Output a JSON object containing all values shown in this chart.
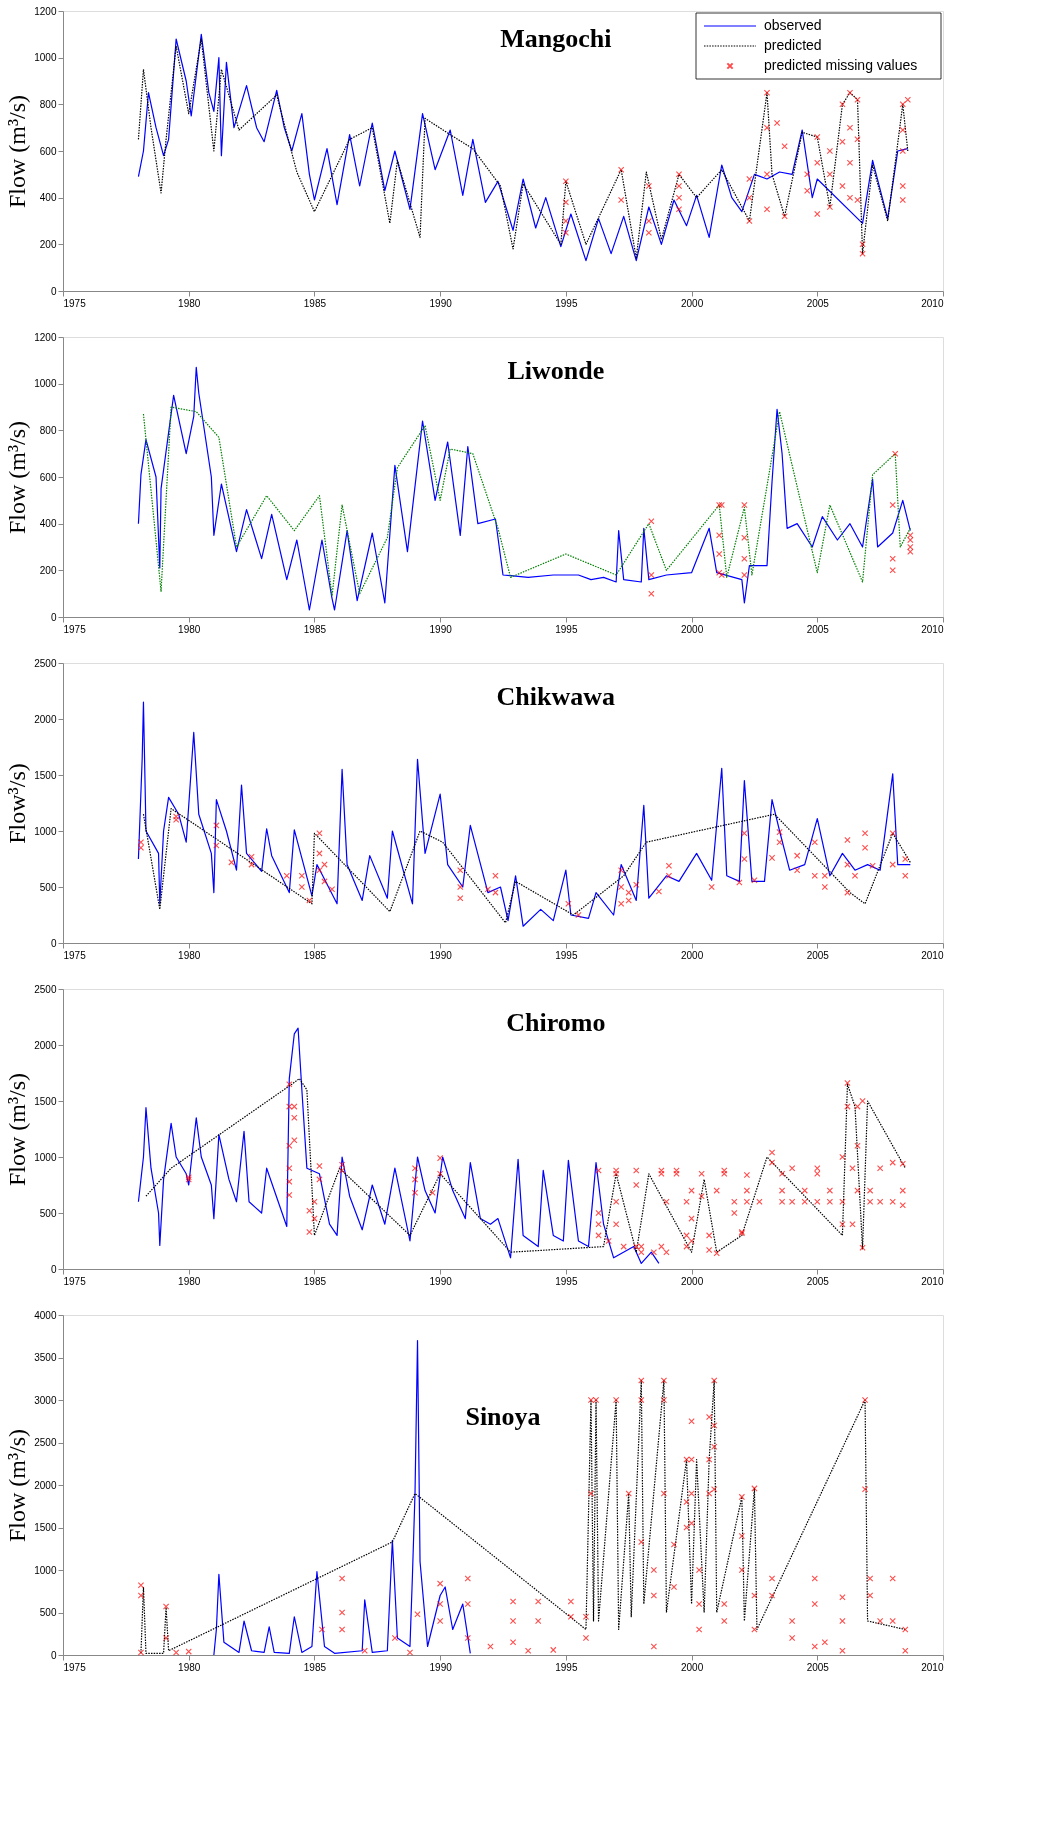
{
  "chart_data": [
    {
      "type": "line",
      "title": "Mangochi",
      "ylabel": "Flow (m³/s)",
      "xlim": [
        1975,
        2010
      ],
      "xticks": [
        1975,
        1980,
        1985,
        1990,
        1995,
        2000,
        2005,
        2010
      ],
      "ylim": [
        0,
        1200
      ],
      "yticks": [
        0,
        200,
        400,
        600,
        800,
        1000,
        1200
      ],
      "legend": "top right",
      "series": [
        {
          "name": "observed",
          "type": "line",
          "color": "#0000ff",
          "line_style": "solid",
          "x": [
            1978.0,
            1978.2,
            1978.4,
            1978.7,
            1979.0,
            1979.2,
            1979.5,
            1979.9,
            1980.1,
            1980.5,
            1980.8,
            1981.0,
            1981.2,
            1981.3,
            1981.5,
            1981.8,
            1982.3,
            1982.7,
            1983.0,
            1983.5,
            1983.8,
            1984.1,
            1984.5,
            1984.8,
            1985.0,
            1985.5,
            1985.9,
            1986.4,
            1986.8,
            1987.3,
            1987.8,
            1988.2,
            1988.8,
            1989.3,
            1989.8,
            1990.4,
            1990.9,
            1991.3,
            1991.8,
            1992.3,
            1992.9,
            1993.3,
            1993.8,
            1994.2,
            1994.8,
            1995.2,
            1995.8,
            1996.3,
            1996.8,
            1997.3,
            1997.8,
            1998.3,
            1998.8,
            1999.3,
            1999.8,
            2000.2,
            2000.7,
            2001.2,
            2001.6,
            2002.0,
            2002.5,
            2003.0,
            2003.5,
            2004.0,
            2004.4,
            2004.8,
            2005.0,
            2006.8,
            2007.2,
            2007.8,
            2008.2,
            2008.6
          ],
          "values": [
            490,
            600,
            850,
            700,
            580,
            650,
            1080,
            900,
            750,
            1100,
            850,
            770,
            1000,
            580,
            980,
            700,
            880,
            700,
            640,
            860,
            700,
            600,
            760,
            500,
            390,
            610,
            370,
            670,
            450,
            720,
            430,
            600,
            350,
            760,
            520,
            690,
            410,
            650,
            380,
            470,
            260,
            480,
            270,
            400,
            190,
            330,
            130,
            310,
            160,
            320,
            130,
            360,
            200,
            390,
            280,
            410,
            230,
            540,
            400,
            340,
            500,
            480,
            510,
            500,
            690,
            400,
            480,
            290,
            560,
            310,
            600,
            610
          ]
        },
        {
          "name": "predicted",
          "type": "line",
          "color": "#000000",
          "line_style": "dotted",
          "x": [
            1978.0,
            1978.2,
            1978.5,
            1978.9,
            1979.1,
            1979.5,
            1980.0,
            1980.5,
            1981.0,
            1981.3,
            1982.0,
            1983.5,
            1984.3,
            1985.0,
            1986.4,
            1987.3,
            1988.0,
            1988.3,
            1989.2,
            1989.4,
            1990.4,
            1991.3,
            1992.4,
            1992.9,
            1993.3,
            1994.8,
            1995.0,
            1995.8,
            1997.2,
            1997.8,
            1998.2,
            1998.8,
            1999.5,
            2000.2,
            2001.2,
            2002.3,
            2003.0,
            2003.2,
            2003.7,
            2004.4,
            2005.0,
            2005.5,
            2006.0,
            2006.3,
            2006.6,
            2006.8,
            2007.2,
            2007.8,
            2008.4,
            2008.6
          ],
          "values": [
            650,
            950,
            700,
            420,
            650,
            1050,
            760,
            1080,
            600,
            950,
            690,
            840,
            510,
            340,
            650,
            700,
            290,
            560,
            230,
            740,
            670,
            610,
            450,
            180,
            460,
            200,
            470,
            200,
            520,
            140,
            510,
            220,
            500,
            400,
            520,
            300,
            850,
            500,
            320,
            680,
            660,
            360,
            800,
            850,
            820,
            160,
            540,
            300,
            800,
            600
          ]
        },
        {
          "name": "predicted missing values",
          "type": "scatter",
          "color": "#ff0000",
          "marker": "cross",
          "x": [
            1995.0,
            1995.0,
            1995.0,
            1995.0,
            1997.2,
            1997.2,
            1998.3,
            1998.3,
            1998.3,
            1999.5,
            1999.5,
            1999.5,
            1999.5,
            2002.3,
            2002.3,
            2002.3,
            2003.0,
            2003.0,
            2003.0,
            2003.0,
            2003.4,
            2003.7,
            2003.7,
            2004.6,
            2004.6,
            2005.0,
            2005.0,
            2005.0,
            2005.5,
            2005.5,
            2005.5,
            2006.0,
            2006.0,
            2006.0,
            2006.3,
            2006.3,
            2006.3,
            2006.3,
            2006.6,
            2006.6,
            2006.6,
            2006.8,
            2006.8,
            2008.4,
            2008.4,
            2008.4,
            2008.4,
            2008.4,
            2008.6
          ],
          "values": [
            470,
            380,
            300,
            250,
            520,
            390,
            450,
            300,
            250,
            500,
            450,
            400,
            350,
            300,
            400,
            480,
            850,
            700,
            500,
            350,
            720,
            320,
            620,
            500,
            430,
            330,
            660,
            550,
            600,
            500,
            360,
            640,
            800,
            450,
            850,
            700,
            550,
            400,
            820,
            650,
            390,
            200,
            160,
            800,
            690,
            600,
            450,
            390,
            820
          ]
        }
      ]
    },
    {
      "type": "line",
      "title": "Liwonde",
      "ylabel": "Flow (m³/s)",
      "xlim": [
        1975,
        2010
      ],
      "xticks": [
        1975,
        1980,
        1985,
        1990,
        1995,
        2000,
        2005,
        2010
      ],
      "ylim": [
        0,
        1200
      ],
      "yticks": [
        0,
        200,
        400,
        600,
        800,
        1000,
        1200
      ],
      "series": [
        {
          "type": "line",
          "color": "#0000ff",
          "line_style": "solid",
          "x": [
            1978.0,
            1978.1,
            1978.3,
            1978.7,
            1978.85,
            1978.9,
            1979.4,
            1979.9,
            1980.2,
            1980.3,
            1980.4,
            1980.9,
            1981.0,
            1981.3,
            1981.9,
            1982.3,
            1982.9,
            1983.3,
            1983.9,
            1984.3,
            1984.8,
            1985.3,
            1985.7,
            1985.8,
            1986.3,
            1986.7,
            1987.3,
            1987.8,
            1988.2,
            1988.7,
            1989.3,
            1989.8,
            1990.3,
            1990.8,
            1991.1,
            1991.5,
            1992.2,
            1992.5,
            1993.5,
            1994.5,
            1995.5,
            1996.0,
            1996.5,
            1997.0,
            1997.1,
            1997.3,
            1998.0,
            1998.1,
            1998.3,
            1999.0,
            2000.0,
            2000.7,
            2001.0,
            2002.0,
            2002.1,
            2002.3,
            2003.0,
            2003.2,
            2003.4,
            2003.6,
            2003.8,
            2004.2,
            2004.8,
            2005.2,
            2005.8,
            2006.3,
            2006.8,
            2007.2,
            2007.4,
            2008.0,
            2008.4,
            2008.7
          ],
          "values": [
            400,
            610,
            760,
            600,
            210,
            550,
            950,
            700,
            860,
            1070,
            960,
            600,
            350,
            570,
            280,
            460,
            250,
            440,
            160,
            330,
            30,
            330,
            80,
            30,
            370,
            70,
            360,
            60,
            650,
            280,
            840,
            500,
            750,
            350,
            730,
            400,
            420,
            180,
            170,
            180,
            180,
            160,
            170,
            150,
            370,
            160,
            150,
            380,
            160,
            180,
            190,
            380,
            190,
            160,
            60,
            220,
            220,
            580,
            890,
            700,
            380,
            400,
            300,
            430,
            330,
            400,
            300,
            590,
            300,
            360,
            500,
            370
          ]
        },
        {
          "type": "line",
          "color": "#008000",
          "line_style": "dotted",
          "x": [
            1978.2,
            1978.9,
            1979.3,
            1980.3,
            1981.2,
            1981.9,
            1983.1,
            1984.2,
            1985.2,
            1985.7,
            1986.1,
            1986.8,
            1987.9,
            1988.3,
            1989.4,
            1990.0,
            1990.4,
            1991.3,
            1992.3,
            1992.8,
            1995.0,
            1997.0,
            1998.3,
            1999.0,
            2001.1,
            2001.4,
            2002.1,
            2002.4,
            2003.5,
            2004.5,
            2005.0,
            2005.5,
            2006.8,
            2007.2,
            2008.1,
            2008.3,
            2008.7
          ],
          "values": [
            870,
            110,
            900,
            880,
            770,
            300,
            520,
            370,
            520,
            90,
            480,
            100,
            340,
            640,
            820,
            500,
            720,
            700,
            380,
            170,
            270,
            180,
            400,
            200,
            480,
            170,
            470,
            180,
            880,
            420,
            190,
            480,
            150,
            610,
            700,
            300,
            380
          ]
        },
        {
          "type": "scatter",
          "color": "#ff0000",
          "marker": "cross",
          "x": [
            1998.4,
            1998.4,
            1998.4,
            2001.1,
            2001.1,
            2001.1,
            2001.1,
            2001.2,
            2001.2,
            2002.1,
            2002.1,
            2002.1,
            2002.1,
            2008.0,
            2008.0,
            2008.0,
            2008.1,
            2008.7,
            2008.7,
            2008.7,
            2008.7
          ],
          "values": [
            410,
            180,
            100,
            480,
            350,
            270,
            190,
            480,
            180,
            480,
            340,
            250,
            180,
            480,
            250,
            200,
            700,
            350,
            330,
            300,
            280
          ]
        }
      ]
    },
    {
      "type": "line",
      "title": "Chikwawa",
      "ylabel": "Flow³/s)",
      "xlim": [
        1975,
        2010
      ],
      "xticks": [
        1975,
        1980,
        1985,
        1990,
        1995,
        2000,
        2005,
        2010
      ],
      "ylim": [
        0,
        2500
      ],
      "yticks": [
        0,
        500,
        1000,
        1500,
        2000,
        2500
      ],
      "series": [
        {
          "type": "line",
          "color": "#0000ff",
          "line_style": "solid",
          "x": [
            1978.0,
            1978.15,
            1978.2,
            1978.3,
            1978.8,
            1978.85,
            1979.0,
            1979.2,
            1979.6,
            1979.9,
            1980.2,
            1980.4,
            1980.9,
            1981.0,
            1981.1,
            1981.5,
            1981.9,
            1982.1,
            1982.3,
            1982.9,
            1983.1,
            1983.3,
            1984.0,
            1984.2,
            1984.9,
            1985.1,
            1985.9,
            1986.1,
            1986.3,
            1986.9,
            1987.2,
            1987.9,
            1988.1,
            1988.9,
            1989.1,
            1989.4,
            1990.0,
            1990.3,
            1990.9,
            1991.2,
            1991.9,
            1992.4,
            1992.7,
            1993.0,
            1993.3,
            1994.0,
            1994.5,
            1995.0,
            1995.2,
            1995.9,
            1996.2,
            1996.9,
            1997.2,
            1997.8,
            1998.1,
            1998.3,
            1999.0,
            1999.5,
            2000.2,
            2000.8,
            2001.2,
            2001.4,
            2001.9,
            2002.1,
            2002.4,
            2002.9,
            2003.2,
            2003.5,
            2003.9,
            2004.5,
            2005.0,
            2005.5,
            2006.0,
            2006.5,
            2007.0,
            2007.5,
            2008.0,
            2008.2,
            2008.7
          ],
          "values": [
            750,
            1650,
            2150,
            1000,
            800,
            350,
            1000,
            1300,
            1150,
            900,
            1880,
            1150,
            800,
            450,
            1280,
            1000,
            650,
            1410,
            800,
            640,
            1020,
            780,
            450,
            1010,
            420,
            700,
            350,
            1550,
            700,
            380,
            780,
            400,
            1000,
            350,
            1640,
            800,
            1330,
            700,
            500,
            1050,
            450,
            500,
            200,
            600,
            150,
            300,
            200,
            650,
            250,
            220,
            450,
            250,
            700,
            380,
            1230,
            400,
            600,
            550,
            800,
            560,
            1560,
            600,
            550,
            1450,
            550,
            550,
            1280,
            1000,
            650,
            700,
            1110,
            600,
            800,
            650,
            700,
            650,
            1510,
            700,
            700
          ]
        },
        {
          "type": "line",
          "color": "#000000",
          "line_style": "dotted",
          "x": [
            1978.2,
            1978.85,
            1979.3,
            1980.3,
            1984.9,
            1985.0,
            1988.0,
            1989.2,
            1990.1,
            1992.6,
            1993.0,
            1995.3,
            1997.3,
            1998.2,
            2003.3,
            2006.3,
            2006.9,
            2008.0,
            2008.7
          ],
          "values": [
            1150,
            300,
            1200,
            1050,
            350,
            980,
            280,
            1000,
            900,
            180,
            550,
            250,
            600,
            900,
            1150,
            450,
            350,
            980,
            720
          ]
        },
        {
          "type": "scatter",
          "color": "#ff0000",
          "marker": "cross",
          "x": [
            1978.1,
            1978.1,
            1979.5,
            1979.5,
            1981.1,
            1981.1,
            1981.7,
            1982.5,
            1982.5,
            1983.9,
            1984.5,
            1984.5,
            1984.8,
            1985.2,
            1985.2,
            1985.2,
            1985.4,
            1985.4,
            1985.7,
            1990.8,
            1990.8,
            1990.8,
            1991.9,
            1992.2,
            1992.2,
            1995.1,
            1995.5,
            1997.2,
            1997.2,
            1997.2,
            1997.5,
            1997.5,
            1997.8,
            1998.7,
            1999.1,
            1999.1,
            2000.8,
            2001.9,
            2002.1,
            2002.1,
            2002.5,
            2003.2,
            2003.5,
            2003.5,
            2004.2,
            2004.2,
            2004.9,
            2004.9,
            2005.3,
            2005.3,
            2006.2,
            2006.2,
            2006.2,
            2006.5,
            2006.9,
            2006.9,
            2007.2,
            2008.0,
            2008.0,
            2008.5,
            2008.5
          ],
          "values": [
            900,
            850,
            1130,
            1100,
            1050,
            870,
            720,
            770,
            700,
            600,
            600,
            500,
            380,
            980,
            800,
            650,
            700,
            550,
            480,
            650,
            500,
            400,
            480,
            600,
            450,
            350,
            250,
            650,
            500,
            350,
            450,
            380,
            520,
            460,
            690,
            600,
            500,
            540,
            980,
            750,
            560,
            760,
            990,
            900,
            780,
            650,
            900,
            600,
            500,
            600,
            920,
            700,
            450,
            600,
            980,
            850,
            690,
            980,
            700,
            600,
            750
          ]
        }
      ]
    },
    {
      "type": "line",
      "title": "Chiromo",
      "ylabel": "Flow (m³/s)",
      "xlim": [
        1975,
        2010
      ],
      "xticks": [
        1975,
        1980,
        1985,
        1990,
        1995,
        2000,
        2005,
        2010
      ],
      "ylim": [
        0,
        2500
      ],
      "yticks": [
        0,
        500,
        1000,
        1500,
        2000,
        2500
      ],
      "series": [
        {
          "type": "line",
          "color": "#0000ff",
          "line_style": "solid",
          "x": [
            1978.0,
            1978.2,
            1978.3,
            1978.5,
            1978.8,
            1978.85,
            1979.0,
            1979.3,
            1979.5,
            1979.9,
            1980.0,
            1980.3,
            1980.5,
            1980.9,
            1981.0,
            1981.2,
            1981.6,
            1981.9,
            1982.2,
            1982.4,
            1982.9,
            1983.1,
            1983.9,
            1984.0,
            1984.2,
            1984.35,
            1984.5,
            1984.7,
            1985.2,
            1985.6,
            1985.9,
            1986.1,
            1986.4,
            1986.9,
            1987.3,
            1987.8,
            1988.2,
            1988.8,
            1989.1,
            1989.4,
            1989.8,
            1990.1,
            1990.5,
            1991.0,
            1991.2,
            1991.6,
            1992.0,
            1992.3,
            1992.8,
            1993.1,
            1993.3,
            1993.9,
            1994.1,
            1994.5,
            1994.9,
            1995.1,
            1995.5,
            1995.9,
            1996.2,
            1996.5,
            1996.9,
            1997.7,
            1998.0,
            1998.4,
            1998.7
          ],
          "values": [
            600,
            1000,
            1440,
            900,
            500,
            210,
            800,
            1300,
            1000,
            850,
            750,
            1350,
            1000,
            750,
            450,
            1200,
            800,
            600,
            1230,
            600,
            500,
            900,
            380,
            1700,
            2100,
            2150,
            1600,
            900,
            850,
            400,
            300,
            1000,
            650,
            350,
            750,
            400,
            900,
            250,
            1000,
            700,
            500,
            1000,
            700,
            450,
            950,
            450,
            400,
            450,
            100,
            980,
            300,
            200,
            880,
            300,
            250,
            970,
            250,
            200,
            950,
            400,
            100,
            200,
            50,
            150,
            50
          ]
        },
        {
          "type": "line",
          "color": "#000000",
          "line_style": "dotted",
          "x": [
            1978.3,
            1979.3,
            1984.1,
            1984.4,
            1984.7,
            1985.0,
            1986.0,
            1988.8,
            1990.0,
            1992.8,
            1996.5,
            1997.0,
            1997.8,
            1998.3,
            2000.0,
            2000.5,
            2001.0,
            2002.0,
            2003.0,
            2006.0,
            2006.2,
            2006.5,
            2006.8,
            2007.0,
            2008.5
          ],
          "values": [
            650,
            900,
            1650,
            1700,
            1600,
            300,
            900,
            300,
            850,
            150,
            200,
            850,
            150,
            850,
            150,
            800,
            150,
            300,
            1000,
            300,
            1650,
            1450,
            180,
            1500,
            900
          ]
        },
        {
          "type": "scatter",
          "color": "#ff0000",
          "marker": "cross",
          "x": [
            1980.0,
            1980.0,
            1984.0,
            1984.0,
            1984.0,
            1984.0,
            1984.0,
            1984.0,
            1984.2,
            1984.2,
            1984.2,
            1984.8,
            1984.8,
            1985.0,
            1985.0,
            1985.2,
            1985.2,
            1986.1,
            1986.1,
            1989.0,
            1989.0,
            1989.0,
            1989.7,
            1990.0,
            1990.0,
            1996.3,
            1996.3,
            1996.3,
            1996.3,
            1996.7,
            1997.0,
            1997.0,
            1997.0,
            1997.0,
            1997.3,
            1997.8,
            1997.8,
            1997.8,
            1998.0,
            1998.0,
            1998.5,
            1998.8,
            1998.8,
            1998.8,
            1999.0,
            1999.0,
            1999.4,
            1999.4,
            1999.8,
            1999.8,
            1999.8,
            2000.0,
            2000.0,
            2000.0,
            2000.4,
            2000.4,
            2000.7,
            2000.7,
            2001.0,
            2001.0,
            2001.3,
            2001.3,
            2001.7,
            2001.7,
            2002.0,
            2002.0,
            2002.2,
            2002.2,
            2002.2,
            2002.7,
            2003.2,
            2003.2,
            2003.6,
            2003.6,
            2003.6,
            2004.0,
            2004.0,
            2004.5,
            2004.5,
            2005.0,
            2005.0,
            2005.0,
            2005.5,
            2005.5,
            2006.0,
            2006.0,
            2006.0,
            2006.2,
            2006.2,
            2006.4,
            2006.4,
            2006.6,
            2006.6,
            2006.6,
            2006.8,
            2006.8,
            2007.1,
            2007.1,
            2007.5,
            2007.5,
            2008.0,
            2008.0,
            2008.4,
            2008.4,
            2008.4
          ],
          "values": [
            820,
            800,
            1650,
            1450,
            1100,
            900,
            780,
            660,
            1450,
            1350,
            1150,
            520,
            330,
            600,
            450,
            920,
            800,
            930,
            880,
            900,
            800,
            680,
            680,
            990,
            850,
            880,
            500,
            400,
            300,
            250,
            880,
            850,
            600,
            400,
            200,
            880,
            750,
            200,
            150,
            200,
            150,
            880,
            850,
            200,
            150,
            600,
            880,
            850,
            600,
            300,
            200,
            700,
            450,
            250,
            850,
            650,
            300,
            170,
            140,
            700,
            880,
            850,
            600,
            500,
            320,
            330,
            840,
            700,
            600,
            600,
            1040,
            950,
            850,
            700,
            600,
            900,
            600,
            700,
            600,
            900,
            850,
            600,
            700,
            600,
            1000,
            600,
            400,
            1660,
            1450,
            400,
            900,
            1450,
            1100,
            700,
            1500,
            190,
            600,
            700,
            900,
            600,
            950,
            600,
            940,
            700,
            570
          ]
        }
      ]
    },
    {
      "type": "line",
      "title": "Sinoya",
      "ylabel": "Flow (m³/s)",
      "xlim": [
        1975,
        2010
      ],
      "xticks": [
        1975,
        1980,
        1985,
        1990,
        1995,
        2000,
        2005,
        2010
      ],
      "ylim": [
        0,
        4000
      ],
      "yticks": [
        0,
        500,
        1000,
        1500,
        2000,
        2500,
        3000,
        3500,
        4000
      ],
      "series": [
        {
          "type": "line",
          "color": "#0000ff",
          "line_style": "solid",
          "x": [
            1981.0,
            1981.1,
            1981.2,
            1981.4,
            1982.0,
            1982.2,
            1982.5,
            1983.0,
            1983.2,
            1983.4,
            1984.0,
            1984.2,
            1984.5,
            1984.9,
            1985.1,
            1985.4,
            1985.8,
            1986.9,
            1987.0,
            1987.3,
            1987.9,
            1988.1,
            1988.3,
            1988.8,
            1988.9,
            1989.0,
            1989.1,
            1989.2,
            1989.5,
            1990.0,
            1990.2,
            1990.5,
            1990.9,
            1991.2
          ],
          "values": [
            0,
            300,
            950,
            150,
            30,
            400,
            50,
            30,
            330,
            30,
            20,
            450,
            30,
            100,
            980,
            100,
            20,
            50,
            650,
            30,
            50,
            1350,
            200,
            100,
            950,
            1900,
            3700,
            1100,
            100,
            700,
            800,
            300,
            600,
            20
          ]
        },
        {
          "type": "line",
          "color": "#000000",
          "line_style": "dotted",
          "x": [
            1978.1,
            1978.2,
            1978.3,
            1979.0,
            1979.1,
            1979.2,
            1988.1,
            1989.0,
            1995.8,
            1996.0,
            1996.1,
            1996.2,
            1996.3,
            1997.0,
            1997.1,
            1997.5,
            1997.6,
            1998.0,
            1998.1,
            1998.9,
            1999.0,
            1999.8,
            2000.0,
            2000.2,
            2000.5,
            2000.7,
            2000.9,
            2001.0,
            2002.0,
            2002.1,
            2002.5,
            2002.6,
            2006.9,
            2007.0,
            2008.5
          ],
          "values": [
            20,
            800,
            20,
            20,
            560,
            50,
            1330,
            1900,
            300,
            3000,
            400,
            3000,
            400,
            3000,
            300,
            1900,
            450,
            3230,
            600,
            3230,
            500,
            2300,
            600,
            2300,
            500,
            2300,
            3230,
            500,
            1860,
            400,
            1960,
            300,
            3000,
            400,
            300
          ]
        },
        {
          "type": "scatter",
          "color": "#ff0000",
          "marker": "cross",
          "x": [
            1978.1,
            1978.1,
            1978.1,
            1979.1,
            1979.1,
            1979.5,
            1980.0,
            1985.3,
            1986.1,
            1986.1,
            1986.1,
            1987.0,
            1988.2,
            1988.8,
            1989.1,
            1990.0,
            1990.0,
            1990.0,
            1991.1,
            1991.1,
            1991.1,
            1992.0,
            1992.9,
            1992.9,
            1992.9,
            1993.5,
            1993.9,
            1993.9,
            1994.5,
            1995.2,
            1995.2,
            1995.8,
            1995.8,
            1996.0,
            1996.0,
            1996.2,
            1997.0,
            1997.5,
            1998.0,
            1998.0,
            1998.0,
            1998.5,
            1998.5,
            1998.5,
            1998.9,
            1998.9,
            1998.9,
            1999.3,
            1999.3,
            1999.8,
            1999.8,
            1999.8,
            2000.0,
            2000.0,
            2000.0,
            2000.0,
            2000.3,
            2000.3,
            2000.3,
            2000.7,
            2000.7,
            2000.7,
            2000.9,
            2000.9,
            2000.9,
            2000.9,
            2001.3,
            2001.3,
            2002.0,
            2002.0,
            2002.0,
            2002.5,
            2002.5,
            2002.5,
            2003.2,
            2003.2,
            2004.0,
            2004.0,
            2004.9,
            2004.9,
            2004.9,
            2005.3,
            2006.0,
            2006.0,
            2006.0,
            2006.9,
            2006.9,
            2007.1,
            2007.1,
            2007.5,
            2008.0,
            2008.0,
            2008.5,
            2008.5
          ],
          "values": [
            820,
            700,
            30,
            570,
            200,
            30,
            40,
            300,
            900,
            500,
            300,
            50,
            200,
            30,
            480,
            840,
            600,
            400,
            900,
            600,
            200,
            100,
            630,
            400,
            150,
            50,
            630,
            400,
            60,
            630,
            450,
            450,
            200,
            3000,
            1900,
            3000,
            3000,
            1900,
            3230,
            3000,
            1330,
            1000,
            700,
            100,
            3230,
            3000,
            1900,
            1300,
            800,
            2300,
            1800,
            1500,
            2750,
            2300,
            1900,
            1550,
            1000,
            600,
            300,
            2800,
            2300,
            1900,
            3230,
            2700,
            2450,
            1950,
            600,
            400,
            1860,
            1400,
            1000,
            1960,
            700,
            300,
            900,
            700,
            400,
            200,
            900,
            600,
            100,
            150,
            680,
            400,
            50,
            3000,
            1950,
            900,
            700,
            400,
            900,
            400,
            300,
            50
          ]
        }
      ]
    }
  ]
}
